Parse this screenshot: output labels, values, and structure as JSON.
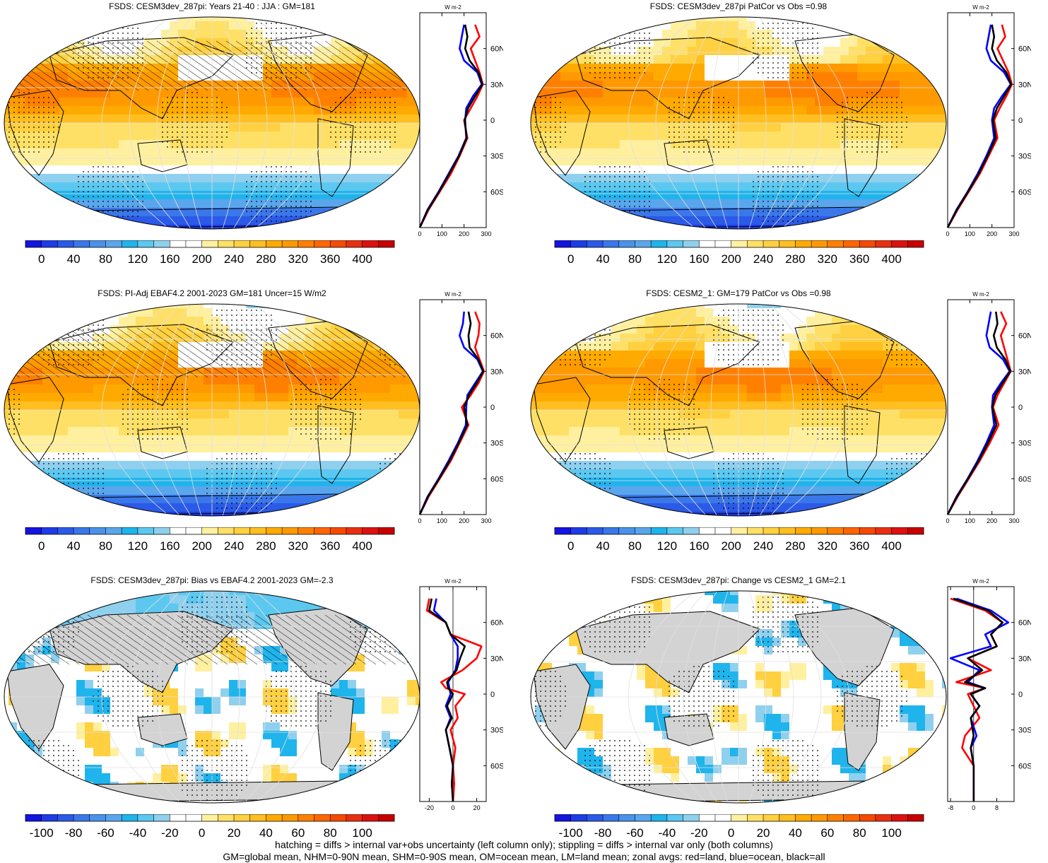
{
  "panels": [
    {
      "id": "p1",
      "title": "FSDS: CESM3dev_287pi: Years 21-40 : JJA : GM=181",
      "kind": "abs",
      "hatch": true,
      "cbar": "abs",
      "zonal": "abs"
    },
    {
      "id": "p2",
      "title": "FSDS: CESM3dev_287pi PatCor vs Obs =0.98",
      "kind": "abs",
      "hatch": false,
      "cbar": "abs",
      "zonal": "abs"
    },
    {
      "id": "p3",
      "title": "FSDS: PI-Adj EBAF4.2 2001-2023 GM=181 Uncer=15 W/m2",
      "kind": "abs",
      "hatch": true,
      "cbar": "abs",
      "zonal": "abs"
    },
    {
      "id": "p4",
      "title": "FSDS: CESM2_1: GM=179 PatCor vs Obs =0.98",
      "kind": "abs",
      "hatch": false,
      "cbar": "abs",
      "zonal": "abs"
    },
    {
      "id": "p5",
      "title": "FSDS: CESM3dev_287pi: Bias vs EBAF4.2 2001-2023 GM=-2.3",
      "kind": "diff",
      "hatch": true,
      "cbar": "bias",
      "zonal": "bias"
    },
    {
      "id": "p6",
      "title": "FSDS: CESM3dev_287pi: Change vs CESM2_1 GM=2.1",
      "kind": "diff",
      "hatch": false,
      "cbar": "change",
      "zonal": "change"
    }
  ],
  "colorbars": {
    "abs": {
      "labels": [
        "0",
        "40",
        "80",
        "120",
        "160",
        "200",
        "240",
        "280",
        "320",
        "360",
        "400"
      ],
      "colors": [
        "#1414e0",
        "#1e3ce6",
        "#2b5ae8",
        "#3a78ea",
        "#4b92ea",
        "#5aa6ec",
        "#1fb4ec",
        "#5cc8f0",
        "#8fd0ee",
        "#ffffff",
        "#ffffff",
        "#fff0a0",
        "#ffe066",
        "#ffd040",
        "#ffbf20",
        "#ffaa00",
        "#ff9900",
        "#ff8000",
        "#ff6600",
        "#f54a00",
        "#e83010",
        "#dd1010",
        "#c80000"
      ]
    },
    "bias": {
      "labels": [
        "-100",
        "-80",
        "-60",
        "-40",
        "-20",
        "0",
        "20",
        "40",
        "60",
        "80",
        "100"
      ],
      "colors": [
        "#1414e0",
        "#1e3ce6",
        "#2b5ae8",
        "#3a78ea",
        "#4b92ea",
        "#5aa6ec",
        "#1fb4ec",
        "#5cc8f0",
        "#8fd0ee",
        "#ffffff",
        "#ffffff",
        "#fff0a0",
        "#ffe066",
        "#ffd040",
        "#ffbf20",
        "#ffaa00",
        "#ff9900",
        "#ff8000",
        "#ff6600",
        "#f54a00",
        "#e83010",
        "#dd1010",
        "#c80000"
      ]
    },
    "change": {
      "labels": [
        "-100",
        "-80",
        "-60",
        "-40",
        "-20",
        "0",
        "20",
        "40",
        "60",
        "80",
        "100"
      ],
      "colors": [
        "#1414e0",
        "#1e3ce6",
        "#2b5ae8",
        "#3a78ea",
        "#4b92ea",
        "#5aa6ec",
        "#1fb4ec",
        "#5cc8f0",
        "#8fd0ee",
        "#ffffff",
        "#ffffff",
        "#fff0a0",
        "#ffe066",
        "#ffd040",
        "#ffbf20",
        "#ffaa00",
        "#ff9900",
        "#ff8000",
        "#ff6600",
        "#f54a00",
        "#e83010",
        "#dd1010",
        "#c80000"
      ]
    }
  },
  "zonal_axes": {
    "abs": {
      "unit": "W m-2",
      "xticks": [
        "0",
        "100",
        "200",
        "300"
      ],
      "xrange": [
        0,
        300
      ],
      "yticks": [
        "60N",
        "30N",
        "0",
        "30S",
        "60S"
      ]
    },
    "bias": {
      "unit": "W m-2",
      "xticks": [
        "-20",
        "0",
        "20"
      ],
      "xrange": [
        -28,
        28
      ],
      "yticks": [
        "60N",
        "30N",
        "0",
        "30S",
        "60S"
      ]
    },
    "change": {
      "unit": "W m-2",
      "xticks": [
        "-8",
        "0",
        "8"
      ],
      "xrange": [
        -9,
        14
      ],
      "yticks": [
        "60N",
        "30N",
        "0",
        "30S",
        "60S"
      ]
    }
  },
  "chart_data": [
    {
      "type": "line",
      "panel": "p1",
      "title": "FSDS: CESM3dev_287pi: Years 21-40 : JJA : GM=181",
      "x_label": "W m-2",
      "y_ticks": [
        "60N",
        "30N",
        "0",
        "30S",
        "60S"
      ],
      "lat": [
        -90,
        -75,
        -60,
        -45,
        -30,
        -15,
        0,
        10,
        20,
        30,
        40,
        50,
        60,
        70,
        80
      ],
      "series": [
        {
          "name": "land",
          "color": "#ff0000",
          "values": [
            0,
            40,
            90,
            140,
            180,
            215,
            200,
            230,
            260,
            285,
            270,
            250,
            230,
            270,
            250
          ]
        },
        {
          "name": "ocean",
          "color": "#0000ff",
          "values": [
            0,
            35,
            85,
            130,
            175,
            210,
            205,
            210,
            240,
            280,
            260,
            200,
            180,
            190,
            200
          ]
        },
        {
          "name": "all",
          "color": "#000000",
          "values": [
            0,
            37,
            87,
            133,
            177,
            212,
            203,
            218,
            250,
            283,
            265,
            225,
            205,
            215,
            205
          ]
        }
      ]
    },
    {
      "type": "line",
      "panel": "p2",
      "title": "FSDS: CESM3dev_287pi PatCor vs Obs =0.98",
      "x_label": "W m-2",
      "y_ticks": [
        "60N",
        "30N",
        "0",
        "30S",
        "60S"
      ],
      "lat": [
        -90,
        -75,
        -60,
        -45,
        -30,
        -15,
        0,
        10,
        20,
        30,
        40,
        50,
        60,
        70,
        80
      ],
      "series": [
        {
          "name": "land",
          "color": "#ff0000",
          "values": [
            0,
            45,
            95,
            145,
            185,
            225,
            210,
            235,
            265,
            290,
            275,
            250,
            225,
            260,
            245
          ]
        },
        {
          "name": "ocean",
          "color": "#0000ff",
          "values": [
            0,
            40,
            90,
            135,
            175,
            210,
            200,
            210,
            245,
            285,
            255,
            195,
            175,
            185,
            195
          ]
        },
        {
          "name": "all",
          "color": "#000000",
          "values": [
            0,
            42,
            92,
            140,
            180,
            217,
            205,
            222,
            255,
            287,
            265,
            222,
            200,
            210,
            200
          ]
        }
      ]
    },
    {
      "type": "line",
      "panel": "p3",
      "title": "FSDS: PI-Adj EBAF4.2 2001-2023 GM=181 Uncer=15 W/m2",
      "x_label": "W m-2",
      "y_ticks": [
        "60N",
        "30N",
        "0",
        "30S",
        "60S"
      ],
      "lat": [
        -90,
        -75,
        -60,
        -45,
        -30,
        -15,
        0,
        10,
        20,
        30,
        40,
        50,
        60,
        70,
        80
      ],
      "series": [
        {
          "name": "land",
          "color": "#ff0000",
          "values": [
            0,
            40,
            90,
            140,
            180,
            220,
            190,
            230,
            265,
            290,
            270,
            250,
            265,
            270,
            250
          ]
        },
        {
          "name": "ocean",
          "color": "#0000ff",
          "values": [
            0,
            35,
            85,
            130,
            172,
            208,
            210,
            215,
            250,
            285,
            260,
            200,
            180,
            195,
            200
          ]
        },
        {
          "name": "all",
          "color": "#000000",
          "values": [
            0,
            37,
            87,
            135,
            176,
            214,
            200,
            222,
            257,
            287,
            265,
            225,
            220,
            230,
            220
          ]
        }
      ]
    },
    {
      "type": "line",
      "panel": "p4",
      "title": "FSDS: CESM2_1: GM=179 PatCor vs Obs =0.98",
      "x_label": "W m-2",
      "y_ticks": [
        "60N",
        "30N",
        "0",
        "30S",
        "60S"
      ],
      "lat": [
        -90,
        -75,
        -60,
        -45,
        -30,
        -15,
        0,
        10,
        20,
        30,
        40,
        50,
        60,
        70,
        80
      ],
      "series": [
        {
          "name": "land",
          "color": "#ff0000",
          "values": [
            0,
            45,
            95,
            145,
            190,
            230,
            205,
            225,
            255,
            285,
            270,
            255,
            240,
            265,
            240
          ]
        },
        {
          "name": "ocean",
          "color": "#0000ff",
          "values": [
            0,
            40,
            90,
            135,
            175,
            210,
            200,
            205,
            240,
            280,
            250,
            190,
            175,
            185,
            195
          ]
        },
        {
          "name": "all",
          "color": "#000000",
          "values": [
            0,
            42,
            92,
            140,
            182,
            220,
            202,
            215,
            248,
            283,
            260,
            222,
            208,
            225,
            218
          ]
        }
      ]
    },
    {
      "type": "line",
      "panel": "p5",
      "title": "FSDS: CESM3dev_287pi: Bias vs EBAF4.2 2001-2023 GM=-2.3",
      "x_label": "W m-2",
      "y_ticks": [
        "60N",
        "30N",
        "0",
        "30S",
        "60S"
      ],
      "lat": [
        -90,
        -75,
        -60,
        -45,
        -30,
        -20,
        -10,
        0,
        5,
        10,
        20,
        30,
        40,
        50,
        60,
        70,
        80
      ],
      "series": [
        {
          "name": "land",
          "color": "#ff0000",
          "values": [
            0,
            1,
            0,
            2,
            -2,
            4,
            2,
            10,
            -6,
            -10,
            8,
            20,
            24,
            -2,
            -6,
            -22,
            -20
          ]
        },
        {
          "name": "ocean",
          "color": "#0000ff",
          "values": [
            0,
            -1,
            0,
            -3,
            -6,
            -2,
            -6,
            -2,
            -3,
            -4,
            2,
            4,
            4,
            -2,
            -6,
            -16,
            -14
          ]
        },
        {
          "name": "all",
          "color": "#000000",
          "values": [
            0,
            -1,
            0,
            -3,
            -6,
            -1,
            -5,
            0,
            -4,
            -5,
            3,
            6,
            10,
            -2,
            -6,
            -20,
            -18
          ]
        }
      ]
    },
    {
      "type": "line",
      "panel": "p6",
      "title": "FSDS: CESM3dev_287pi: Change vs CESM2_1 GM=2.1",
      "x_label": "W m-2",
      "y_ticks": [
        "60N",
        "30N",
        "0",
        "30S",
        "60S"
      ],
      "lat": [
        -90,
        -75,
        -60,
        -45,
        -35,
        -20,
        -10,
        0,
        5,
        10,
        20,
        30,
        40,
        50,
        60,
        70,
        80
      ],
      "series": [
        {
          "name": "land",
          "color": "#ff0000",
          "values": [
            0,
            0,
            0,
            -4,
            -3,
            2,
            0,
            -2,
            4,
            -6,
            6,
            -2,
            8,
            6,
            10,
            4,
            -8
          ]
        },
        {
          "name": "ocean",
          "color": "#0000ff",
          "values": [
            0,
            0,
            0,
            -1,
            1,
            -1,
            2,
            -1,
            4,
            -2,
            2,
            -8,
            6,
            4,
            12,
            6,
            -6
          ]
        },
        {
          "name": "all",
          "color": "#000000",
          "values": [
            0,
            0,
            0,
            -1,
            0,
            -1,
            2,
            -1,
            4,
            -3,
            3,
            -2,
            8,
            6,
            10,
            5,
            -7
          ]
        }
      ]
    }
  ],
  "footnote": {
    "line1": "hatching = diffs > internal var+obs uncertainty (left column only); stippling = diffs > internal var only (both columns)",
    "line2": "GM=global mean, NHM=0-90N mean, SHM=0-90S mean, OM=ocean mean, LM=land mean; zonal avgs: red=land, blue=ocean, black=all"
  }
}
